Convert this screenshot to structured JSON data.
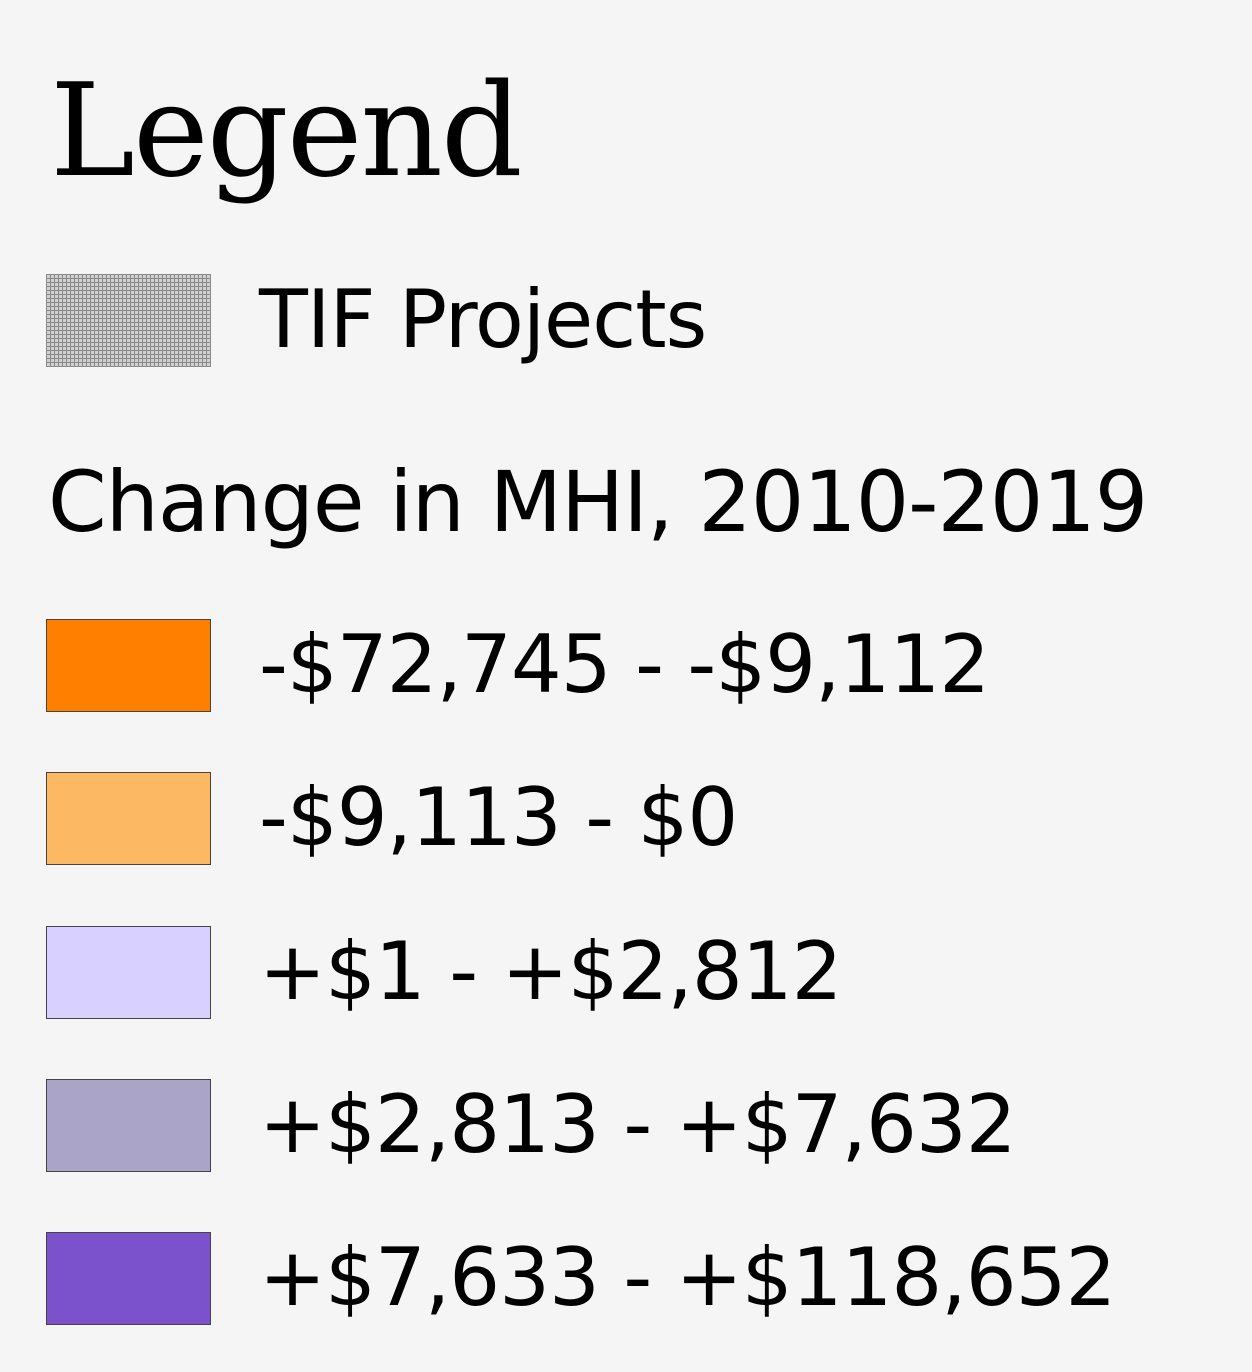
{
  "legend": {
    "title": "Legend",
    "overlay": {
      "label": "TIF Projects",
      "icon": "hatch-pattern-swatch"
    },
    "section_title": "Change in MHI, 2010-2019",
    "classes": [
      {
        "label": "-$72,745 - -$9,112",
        "color": "#ff8000"
      },
      {
        "label": "-$9,113 - $0",
        "color": "#fdb863"
      },
      {
        "label": "+$1 - +$2,812",
        "color": "#d8d0ff"
      },
      {
        "label": "+$2,813 - +$7,632",
        "color": "#aaa5c8"
      },
      {
        "label": "+$7,633 - +$118,652",
        "color": "#7b52cb"
      }
    ]
  }
}
